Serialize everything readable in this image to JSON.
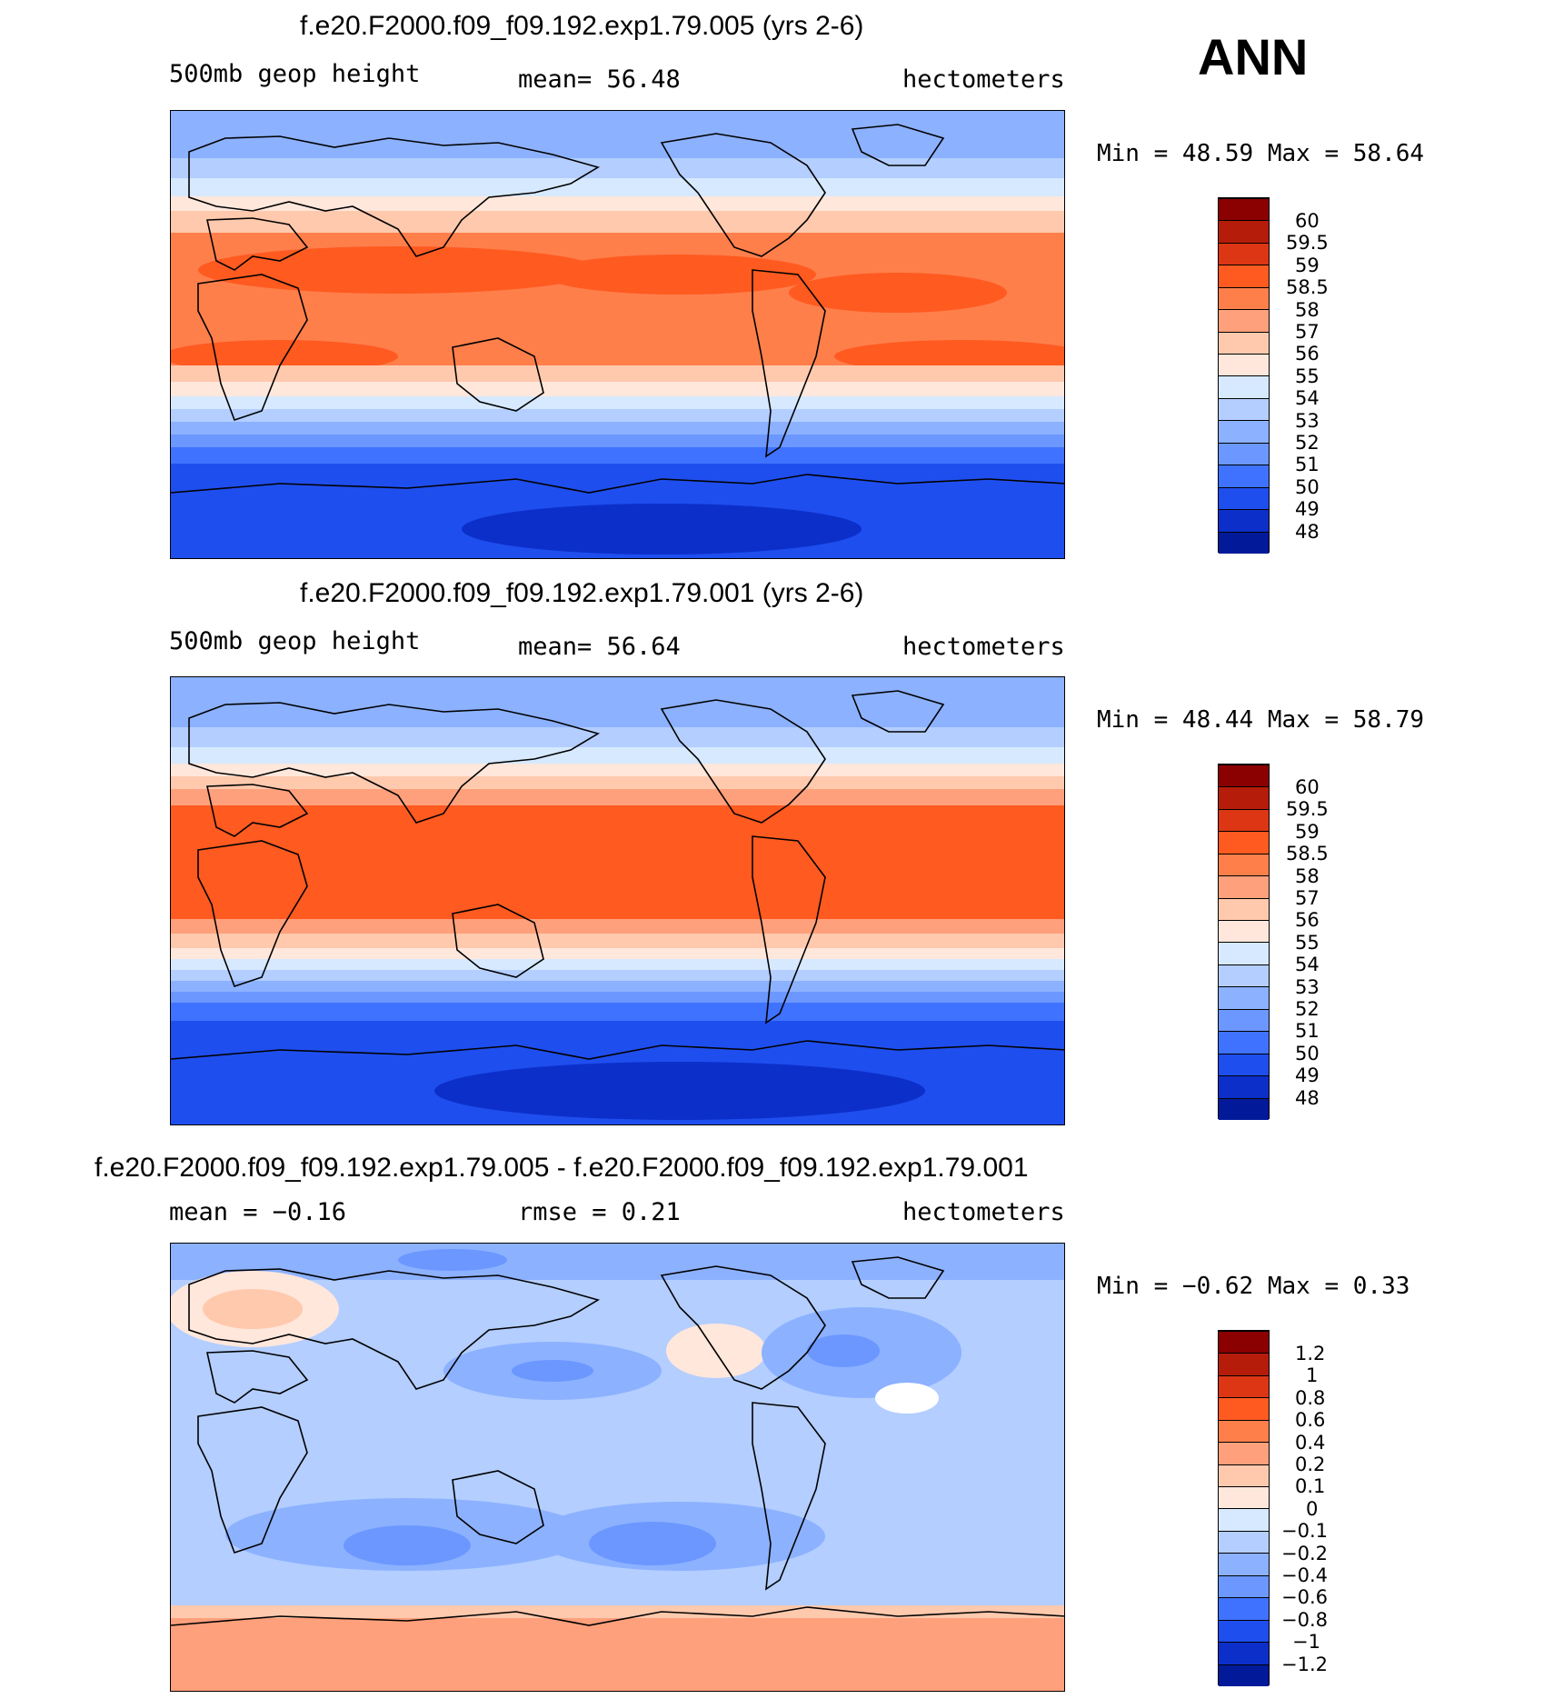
{
  "season": "ANN",
  "panels": [
    {
      "title": "f.e20.F2000.f09_f09.192.exp1.79.005 (yrs 2-6)",
      "left_label": "500mb geop height",
      "center_label": "mean=   56.48",
      "units": "hectometers",
      "min_max": "Min =   48.59 Max =   58.64",
      "colorbar": {
        "labels": [
          "60",
          "59.5",
          "59",
          "58.5",
          "58",
          "57",
          "56",
          "55",
          "54",
          "53",
          "52",
          "51",
          "50",
          "49",
          "48"
        ],
        "colors": [
          "#8b0000",
          "#b51c0a",
          "#dd3614",
          "#ff5a20",
          "#ff7f4b",
          "#ffa07c",
          "#ffc9ad",
          "#ffe7dc",
          "#d6e9ff",
          "#b3ceff",
          "#8cb1ff",
          "#6b97ff",
          "#3f72ff",
          "#1f4eee",
          "#0c2fca",
          "#021a9a"
        ]
      },
      "map_colors": {
        "north_polar": "#8cb1ff",
        "band_top": [
          "#b3ceff",
          "#d6e9ff",
          "#ffe7dc",
          "#ffc9ad"
        ],
        "tropical": "#ff7f4b",
        "tropical_core": "#ff5a20",
        "band_bottom": [
          "#ffc9ad",
          "#ffe7dc",
          "#d6e9ff",
          "#b3ceff",
          "#8cb1ff",
          "#6b97ff",
          "#3f72ff"
        ],
        "south_polar": "#1f4eee",
        "antarctic_core": "#0c2fca"
      }
    },
    {
      "title": "f.e20.F2000.f09_f09.192.exp1.79.001 (yrs 2-6)",
      "left_label": "500mb geop height",
      "center_label": "mean=   56.64",
      "units": "hectometers",
      "min_max": "Min =   48.44 Max =   58.79",
      "colorbar": {
        "labels": [
          "60",
          "59.5",
          "59",
          "58.5",
          "58",
          "57",
          "56",
          "55",
          "54",
          "53",
          "52",
          "51",
          "50",
          "49",
          "48"
        ],
        "colors": [
          "#8b0000",
          "#b51c0a",
          "#dd3614",
          "#ff5a20",
          "#ff7f4b",
          "#ffa07c",
          "#ffc9ad",
          "#ffe7dc",
          "#d6e9ff",
          "#b3ceff",
          "#8cb1ff",
          "#6b97ff",
          "#3f72ff",
          "#1f4eee",
          "#0c2fca",
          "#021a9a"
        ]
      },
      "map_colors": {
        "north_polar": "#8cb1ff",
        "band_top": [
          "#b3ceff",
          "#d6e9ff",
          "#ffe7dc",
          "#ffc9ad",
          "#ffa07c"
        ],
        "tropical": "#ff5a20",
        "tropical_core": "#ff5a20",
        "band_bottom": [
          "#ffa07c",
          "#ffc9ad",
          "#ffe7dc",
          "#d6e9ff",
          "#b3ceff",
          "#8cb1ff",
          "#6b97ff",
          "#3f72ff"
        ],
        "south_polar": "#1f4eee",
        "antarctic_core": "#0c2fca"
      }
    },
    {
      "title": "f.e20.F2000.f09_f09.192.exp1.79.005 - f.e20.F2000.f09_f09.192.exp1.79.001",
      "left_label": "mean =   −0.16",
      "center_label": "rmse =    0.21",
      "units": "hectometers",
      "min_max": "Min =   −0.62 Max =    0.33",
      "colorbar": {
        "labels": [
          "1.2",
          "1",
          "0.8",
          "0.6",
          "0.4",
          "0.2",
          "0.1",
          "0",
          "−0.1",
          "−0.2",
          "−0.4",
          "−0.6",
          "−0.8",
          "−1",
          "−1.2"
        ],
        "colors": [
          "#8b0000",
          "#b51c0a",
          "#dd3614",
          "#ff5a20",
          "#ff7f4b",
          "#ffa07c",
          "#ffc9ad",
          "#ffe7dc",
          "#d6e9ff",
          "#b3ceff",
          "#8cb1ff",
          "#6b97ff",
          "#3f72ff",
          "#1f4eee",
          "#0c2fca",
          "#021a9a"
        ]
      },
      "map_colors": {
        "background": "#b3ceff",
        "negative_patch": "#8cb1ff",
        "strong_negative": "#6b97ff",
        "positive_patch": "#ffe7dc",
        "warm_patch": "#ffc9ad",
        "south_warm": "#ffa07c"
      }
    }
  ]
}
